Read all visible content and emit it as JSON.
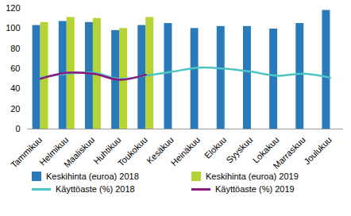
{
  "chart_data": {
    "type": "bar",
    "categories": [
      "Tammikuu",
      "Helmikuu",
      "Maaliskuu",
      "Huhtikuu",
      "Toukokuu",
      "Kesäkuu",
      "Heinäkuu",
      "Elokuu",
      "Syyskuu",
      "Lokakuu",
      "Marraskuu",
      "Joulukuu"
    ],
    "series": [
      {
        "name": "Keskihinta (euroa) 2018",
        "type": "bar",
        "color": "#2a7ab9",
        "values": [
          103,
          107,
          106,
          98,
          103,
          105,
          100,
          102,
          102,
          99.5,
          105,
          118
        ]
      },
      {
        "name": "Keskihinta (euroa) 2019",
        "type": "bar",
        "color": "#b5d335",
        "values": [
          106,
          111,
          110,
          100,
          111,
          null,
          null,
          null,
          null,
          null,
          null,
          null
        ]
      },
      {
        "name": "Käyttöaste (%) 2018",
        "type": "line",
        "color": "#4cc4c4",
        "values": [
          51,
          55,
          56,
          50,
          53,
          57,
          61,
          60,
          57,
          53,
          55,
          51
        ]
      },
      {
        "name": "Käyttöaste (%) 2019",
        "type": "line",
        "color": "#8c1a7c",
        "values": [
          50,
          56,
          55,
          49,
          54,
          null,
          null,
          null,
          null,
          null,
          null,
          null
        ]
      }
    ],
    "ylim": [
      0,
      120
    ],
    "yticks": [
      0,
      20,
      40,
      60,
      80,
      100,
      120
    ],
    "grid": false,
    "legend": "bottom"
  }
}
